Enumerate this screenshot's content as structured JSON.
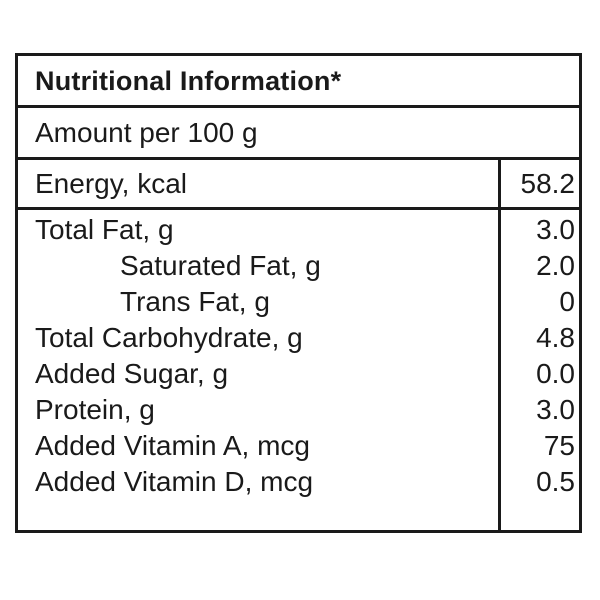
{
  "label": {
    "title": "Nutritional Information*",
    "amount": "Amount per 100 g",
    "energy": {
      "name": "Energy, kcal",
      "value": "58.2"
    },
    "nutrients": [
      {
        "name": "Total Fat, g",
        "value": "3.0"
      },
      {
        "name": "Saturated Fat, g",
        "value": "2.0"
      },
      {
        "name": "Trans Fat, g",
        "value": "0"
      },
      {
        "name": "Total Carbohydrate, g",
        "value": "4.8"
      },
      {
        "name": "Added Sugar, g",
        "value": "0.0"
      },
      {
        "name": "Protein, g",
        "value": "3.0"
      },
      {
        "name": "Added Vitamin A, mcg",
        "value": "75"
      },
      {
        "name": "Added Vitamin D, mcg",
        "value": "0.5"
      }
    ]
  }
}
